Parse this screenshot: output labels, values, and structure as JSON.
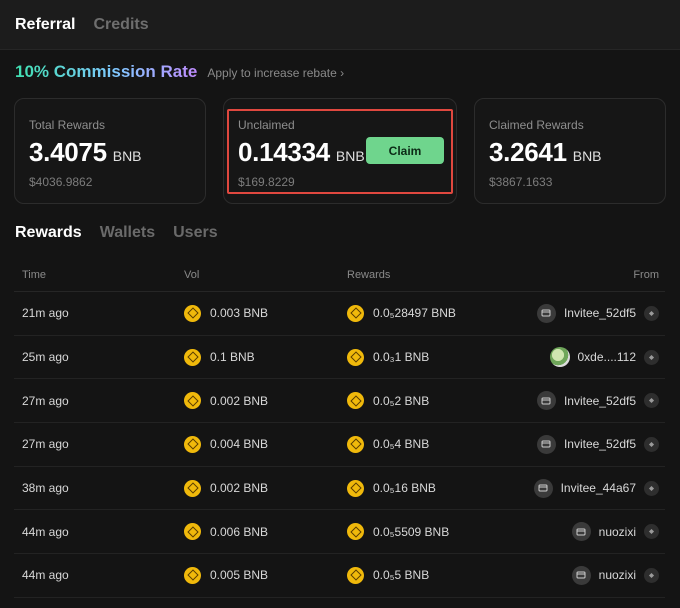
{
  "top_tabs": [
    {
      "label": "Referral",
      "active": true
    },
    {
      "label": "Credits",
      "active": false
    }
  ],
  "commission": {
    "rate_text": "10% Commission Rate",
    "apply_text": "Apply to increase rebate ›"
  },
  "cards": {
    "total": {
      "label": "Total Rewards",
      "value": "3.4075",
      "unit": "BNB",
      "usd": "$4036.9862"
    },
    "unclaimed": {
      "label": "Unclaimed",
      "value": "0.14334",
      "unit": "BNB",
      "usd": "$169.8229",
      "claim_label": "Claim"
    },
    "claimed": {
      "label": "Claimed Rewards",
      "value": "3.2641",
      "unit": "BNB",
      "usd": "$3867.1633"
    }
  },
  "sub_tabs": [
    {
      "label": "Rewards",
      "active": true
    },
    {
      "label": "Wallets",
      "active": false
    },
    {
      "label": "Users",
      "active": false
    }
  ],
  "table": {
    "headers": {
      "time": "Time",
      "vol": "Vol",
      "rewards": "Rewards",
      "from": "From"
    },
    "rows": [
      {
        "time": "21m ago",
        "vol": "0.003 BNB",
        "rewards": "0.0₅28497 BNB",
        "from": "Invitee_52df5",
        "from_icon": "wallet-icon"
      },
      {
        "time": "25m ago",
        "vol": "0.1 BNB",
        "rewards": "0.0₃1 BNB",
        "from": "0xde....112",
        "from_icon": "avatar"
      },
      {
        "time": "27m ago",
        "vol": "0.002 BNB",
        "rewards": "0.0₅2 BNB",
        "from": "Invitee_52df5",
        "from_icon": "wallet-icon"
      },
      {
        "time": "27m ago",
        "vol": "0.004 BNB",
        "rewards": "0.0₅4 BNB",
        "from": "Invitee_52df5",
        "from_icon": "wallet-icon"
      },
      {
        "time": "38m ago",
        "vol": "0.002 BNB",
        "rewards": "0.0₅16 BNB",
        "from": "Invitee_44a67",
        "from_icon": "wallet-icon"
      },
      {
        "time": "44m ago",
        "vol": "0.006 BNB",
        "rewards": "0.0₅5509 BNB",
        "from": "nuozixi",
        "from_icon": "wallet-icon"
      },
      {
        "time": "44m ago",
        "vol": "0.005 BNB",
        "rewards": "0.0₅5 BNB",
        "from": "nuozixi",
        "from_icon": "wallet-icon"
      }
    ]
  },
  "colors": {
    "claim_button": "#6fd58d",
    "highlight_border": "#e0483f",
    "bnb_coin": "#f0b90b"
  }
}
